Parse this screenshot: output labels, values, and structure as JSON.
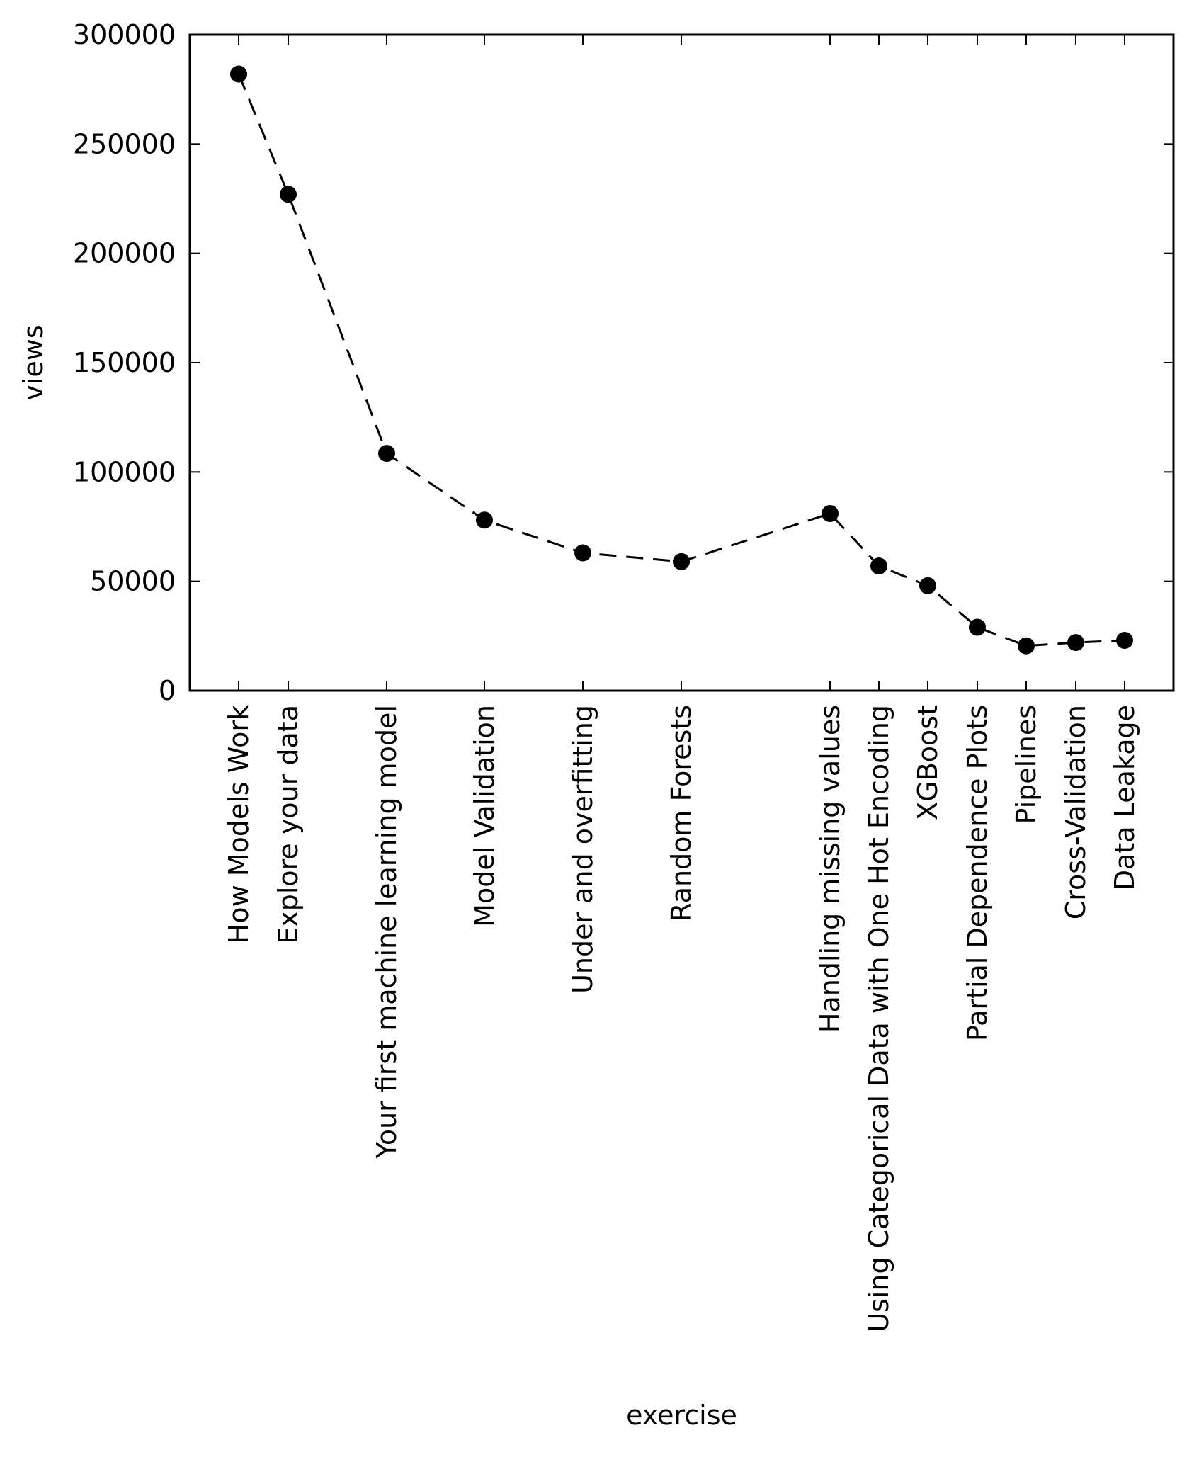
{
  "chart_data": {
    "type": "line",
    "title": "",
    "xlabel": "exercise",
    "ylabel": "views",
    "ylim": [
      0,
      300000
    ],
    "yticks": [
      0,
      50000,
      100000,
      150000,
      200000,
      250000,
      300000
    ],
    "ytick_labels": [
      "0",
      "50000",
      "100000",
      "150000",
      "200000",
      "250000",
      "300000"
    ],
    "grid": false,
    "legend": "none",
    "line_style": "dashed",
    "marker": "filled-circle",
    "colors": {
      "line": "#000000",
      "marker": "#000000",
      "background": "#ffffff"
    },
    "points": [
      {
        "label": "How Models Work",
        "value": 282000
      },
      {
        "label": "Explore your data",
        "value": 227000
      },
      {
        "label": "Your first machine learning model",
        "value": 108500
      },
      {
        "label": "Model Validation",
        "value": 78000
      },
      {
        "label": "Under and overfitting",
        "value": 63000
      },
      {
        "label": "Random Forests",
        "value": 59000
      },
      {
        "label": "Handling missing values",
        "value": 81000
      },
      {
        "label": "Using Categorical Data with One Hot Encoding",
        "value": 57000
      },
      {
        "label": "XGBoost",
        "value": 48000
      },
      {
        "label": "Partial Dependence Plots",
        "value": 29000
      },
      {
        "label": "Pipelines",
        "value": 20500
      },
      {
        "label": "Cross-Validation",
        "value": 22000
      },
      {
        "label": "Data Leakage",
        "value": 23000
      }
    ]
  }
}
